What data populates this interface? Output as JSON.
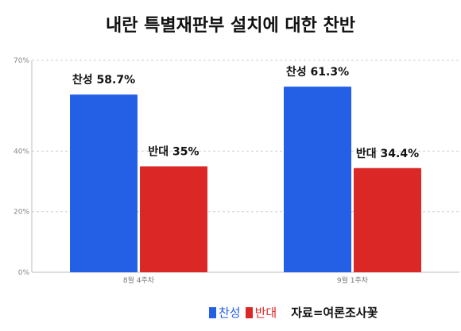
{
  "chart_data": {
    "type": "bar",
    "title": "내란 특별재판부 설치에 대한 찬반",
    "categories": [
      "8월 4주차",
      "9월 1주차"
    ],
    "series": [
      {
        "name": "찬성",
        "color": "#2360e6",
        "values": [
          58.7,
          61.3
        ],
        "labels": [
          "찬성 58.7%",
          "찬성 61.3%"
        ]
      },
      {
        "name": "반대",
        "color": "#dc2727",
        "values": [
          35,
          34.4
        ],
        "labels": [
          "반대 35%",
          "반대 34.4%"
        ]
      }
    ],
    "y_ticks": [
      0,
      20,
      40,
      70
    ],
    "y_tick_labels": [
      "0%",
      "20%",
      "40%",
      "70%"
    ],
    "ylim": [
      0,
      70
    ],
    "xlabel": "",
    "ylabel": "",
    "grid": true,
    "legend": "bottom-center"
  },
  "source": "자료=여론조사꽃"
}
